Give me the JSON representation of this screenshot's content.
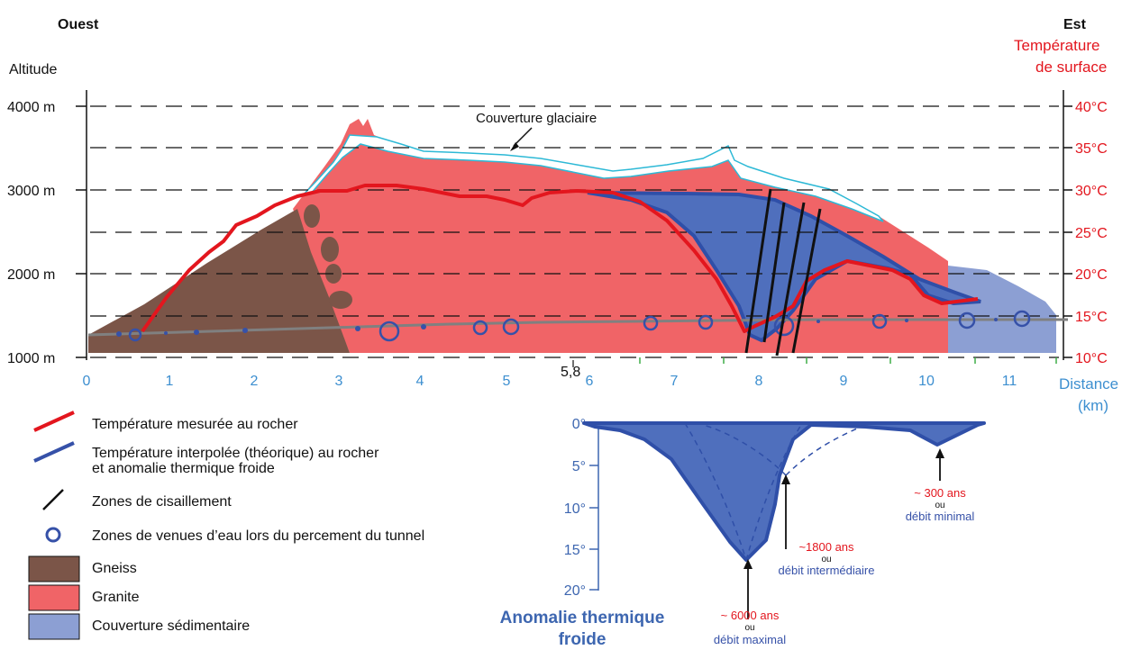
{
  "header": {
    "west": "Ouest",
    "east": "Est",
    "altitude": "Altitude",
    "surface_temp_line1": "Température",
    "surface_temp_line2": "de surface"
  },
  "altitude_ticks": [
    "1000 m",
    "2000 m",
    "3000 m",
    "4000 m"
  ],
  "temperature_ticks": [
    "10°C",
    "15°C",
    "20°C",
    "25°C",
    "30°C",
    "35°C",
    "40°C"
  ],
  "distance_ticks": [
    "0",
    "1",
    "2",
    "3",
    "4",
    "5",
    "6",
    "7",
    "8",
    "9",
    "10",
    "11"
  ],
  "distance_label_line1": "Distance",
  "distance_label_line2": "(km)",
  "marker_58": "5,8",
  "glacier_label": "Couverture glaciaire",
  "legend": [
    {
      "key": "measured",
      "label": "Température mesurée au rocher"
    },
    {
      "key": "interpolated",
      "label": "Température interpolée (théorique) au rocher"
    },
    {
      "key": "interpolated2",
      "label": "et anomalie thermique froide"
    },
    {
      "key": "shear",
      "label": "Zones de cisaillement"
    },
    {
      "key": "water",
      "label": "Zones de venues d’eau lors du percement du tunnel"
    },
    {
      "key": "gneiss",
      "label": "Gneiss"
    },
    {
      "key": "granite",
      "label": "Granite"
    },
    {
      "key": "sediment",
      "label": "Couverture sédimentaire"
    }
  ],
  "anomaly": {
    "title_line1": "Anomalie thermique",
    "title_line2": "froide",
    "ticks": [
      "0°",
      "5°",
      "10°",
      "15°",
      "20°"
    ],
    "notes": [
      {
        "age": "~ 300 ans",
        "or": "ou",
        "flow": "débit minimal"
      },
      {
        "age": "~1800 ans",
        "or": "ou",
        "flow": "débit intermédiaire"
      },
      {
        "age": "~ 6000 ans",
        "or": "ou",
        "flow": "débit maximal"
      }
    ]
  },
  "colors": {
    "granite": "#f06467",
    "gneiss": "#7b5548",
    "sediment": "#8c9fd3",
    "anomaly": "#4f6fbd",
    "anomaly_line": "#2f4fa8",
    "measured": "#e3161e",
    "glacier": "#2db9d6",
    "red_text": "#e3161e",
    "blue_text": "#3d66b0"
  }
}
